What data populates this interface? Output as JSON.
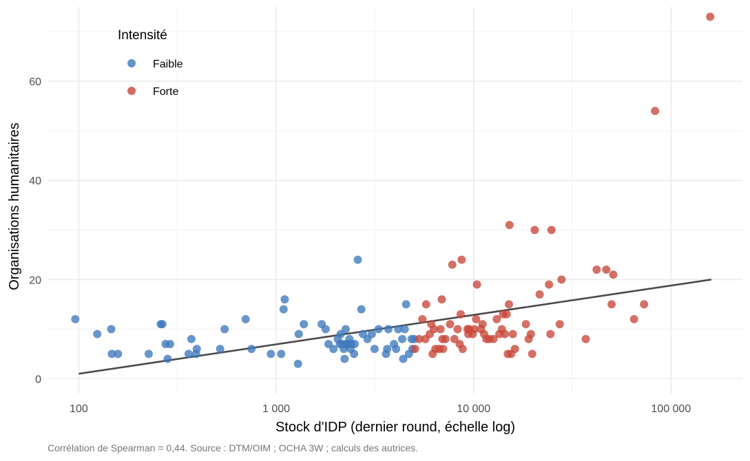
{
  "chart_data": {
    "type": "scatter",
    "title": "",
    "xlabel": "Stock d'IDP (dernier round, échelle log)",
    "ylabel": "Organisations humanitaires",
    "caption": "Corrélation de Spearman = 0,44. Source : DTM/OIM ; OCHA 3W ; calculs des autrices.",
    "x_scale": "log10",
    "xlim": [
      70,
      230000
    ],
    "ylim": [
      -3,
      75
    ],
    "x_ticks": [
      100,
      1000,
      10000,
      100000
    ],
    "x_tick_labels": [
      "100",
      "1 000",
      "10 000",
      "100 000"
    ],
    "y_ticks": [
      0,
      20,
      40,
      60
    ],
    "y_tick_labels": [
      "0",
      "20",
      "40",
      "60"
    ],
    "grid": true,
    "legend": {
      "title": "Intensité",
      "position": "top-left"
    },
    "trend_line": {
      "x": [
        100,
        160000
      ],
      "y": [
        1,
        20
      ]
    },
    "series": [
      {
        "name": "Faible",
        "color": "#3d78bd",
        "points": [
          [
            96,
            12
          ],
          [
            124,
            9
          ],
          [
            146,
            10
          ],
          [
            147,
            5
          ],
          [
            158,
            5
          ],
          [
            226,
            5
          ],
          [
            260,
            11
          ],
          [
            265,
            11
          ],
          [
            275,
            7
          ],
          [
            282,
            4
          ],
          [
            290,
            7
          ],
          [
            360,
            5
          ],
          [
            372,
            8
          ],
          [
            393,
            5
          ],
          [
            396,
            6
          ],
          [
            520,
            6
          ],
          [
            548,
            10
          ],
          [
            700,
            12
          ],
          [
            750,
            6
          ],
          [
            940,
            5
          ],
          [
            1060,
            5
          ],
          [
            1090,
            14
          ],
          [
            1105,
            16
          ],
          [
            1290,
            3
          ],
          [
            1300,
            9
          ],
          [
            1380,
            11
          ],
          [
            1700,
            11
          ],
          [
            1780,
            10
          ],
          [
            1840,
            7
          ],
          [
            1950,
            6
          ],
          [
            2050,
            8
          ],
          [
            2100,
            7
          ],
          [
            2120,
            9
          ],
          [
            2150,
            7
          ],
          [
            2200,
            6
          ],
          [
            2220,
            4
          ],
          [
            2240,
            7
          ],
          [
            2250,
            10
          ],
          [
            2300,
            7
          ],
          [
            2350,
            8
          ],
          [
            2380,
            6
          ],
          [
            2400,
            7
          ],
          [
            2480,
            5
          ],
          [
            2500,
            7
          ],
          [
            2590,
            24
          ],
          [
            2700,
            14
          ],
          [
            2750,
            9
          ],
          [
            2900,
            8
          ],
          [
            3050,
            9
          ],
          [
            3150,
            6
          ],
          [
            3300,
            10
          ],
          [
            3600,
            5
          ],
          [
            3650,
            6
          ],
          [
            3700,
            10
          ],
          [
            3950,
            7
          ],
          [
            4050,
            6
          ],
          [
            4150,
            10
          ],
          [
            4350,
            8
          ],
          [
            4400,
            4
          ],
          [
            4480,
            10
          ],
          [
            4550,
            15
          ],
          [
            4700,
            5
          ],
          [
            4850,
            8
          ],
          [
            4900,
            6
          ],
          [
            5000,
            8
          ]
        ]
      },
      {
        "name": "Forte",
        "color": "#c8473a",
        "points": [
          [
            5050,
            6
          ],
          [
            5300,
            8
          ],
          [
            5500,
            12
          ],
          [
            5700,
            8
          ],
          [
            5750,
            15
          ],
          [
            6000,
            9
          ],
          [
            6100,
            11
          ],
          [
            6200,
            5
          ],
          [
            6300,
            10
          ],
          [
            6400,
            6
          ],
          [
            6700,
            6
          ],
          [
            6800,
            10
          ],
          [
            6900,
            16
          ],
          [
            6950,
            8
          ],
          [
            7000,
            6
          ],
          [
            7200,
            8
          ],
          [
            7600,
            11
          ],
          [
            7800,
            23
          ],
          [
            8000,
            8
          ],
          [
            8300,
            10
          ],
          [
            8500,
            7
          ],
          [
            8600,
            13
          ],
          [
            8700,
            24
          ],
          [
            8800,
            6
          ],
          [
            9300,
            10
          ],
          [
            9400,
            9
          ],
          [
            9500,
            10
          ],
          [
            9900,
            9
          ],
          [
            10100,
            10
          ],
          [
            10300,
            12
          ],
          [
            10400,
            19
          ],
          [
            10900,
            10
          ],
          [
            11100,
            11
          ],
          [
            11300,
            9
          ],
          [
            11600,
            8
          ],
          [
            12000,
            8
          ],
          [
            12600,
            8
          ],
          [
            13100,
            12
          ],
          [
            13500,
            9
          ],
          [
            13900,
            10
          ],
          [
            14100,
            13
          ],
          [
            14400,
            9
          ],
          [
            14700,
            13
          ],
          [
            14900,
            5
          ],
          [
            15100,
            15
          ],
          [
            15200,
            31
          ],
          [
            15500,
            5
          ],
          [
            15800,
            9
          ],
          [
            16200,
            6
          ],
          [
            18400,
            11
          ],
          [
            19000,
            8
          ],
          [
            19500,
            9
          ],
          [
            19800,
            5
          ],
          [
            20400,
            30
          ],
          [
            21600,
            17
          ],
          [
            24100,
            19
          ],
          [
            24500,
            9
          ],
          [
            24800,
            30
          ],
          [
            27300,
            11
          ],
          [
            27900,
            20
          ],
          [
            37000,
            8
          ],
          [
            42000,
            22
          ],
          [
            47000,
            22
          ],
          [
            50000,
            15
          ],
          [
            51000,
            21
          ],
          [
            65000,
            12
          ],
          [
            73000,
            15
          ],
          [
            83000,
            54
          ],
          [
            158000,
            73
          ]
        ]
      }
    ]
  }
}
